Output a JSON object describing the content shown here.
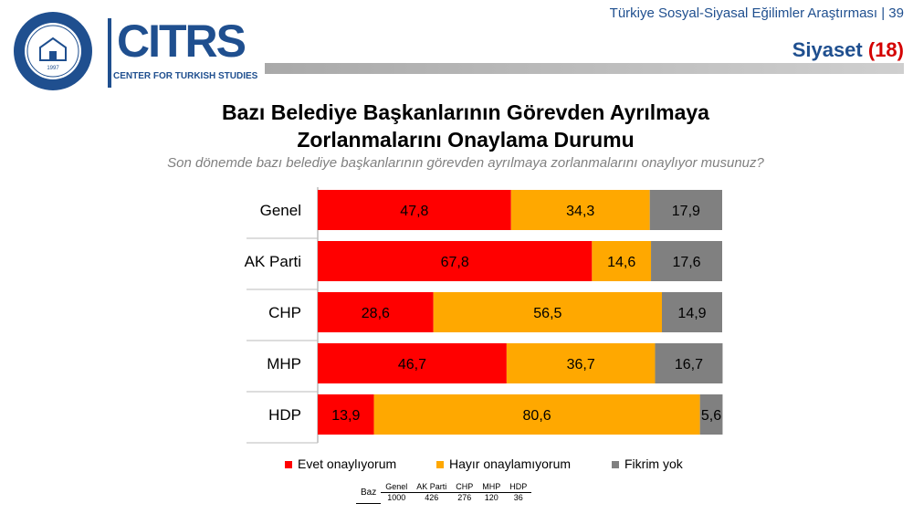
{
  "header": {
    "report_title": "Türkiye Sosyal-Siyasal Eğilimler Araştırması | 39",
    "section_name": "Siyaset",
    "section_number": "(18)",
    "citrs_text": "CITRS",
    "citrs_subtitle": "CENTER FOR TURKISH STUDIES",
    "seal_text": "KADİR HAS ÜNİVERSİTESİ",
    "seal_year": "1997"
  },
  "colors": {
    "evet": "#ff0000",
    "hayir": "#ffa800",
    "fikrim_yok": "#808080",
    "brand_blue": "#1f4f8f",
    "section_number_red": "#d40000"
  },
  "chart_data": {
    "type": "bar",
    "orientation": "horizontal",
    "stacked": true,
    "title_line1": "Bazı Belediye Başkanlarının Görevden Ayrılmaya",
    "title_line2": "Zorlanmalarını Onaylama Durumu",
    "subtitle": "Son dönemde bazı belediye başkanlarının görevden ayrılmaya zorlanmalarını onaylıyor musunuz?",
    "categories": [
      "Genel",
      "AK Parti",
      "CHP",
      "MHP",
      "HDP"
    ],
    "series": [
      {
        "name": "Evet onaylıyorum",
        "color": "#ff0000",
        "values": [
          47.8,
          67.8,
          28.6,
          46.7,
          13.9
        ]
      },
      {
        "name": "Hayır onaylamıyorum",
        "color": "#ffa800",
        "values": [
          34.3,
          14.6,
          56.5,
          36.7,
          80.6
        ]
      },
      {
        "name": "Fikrim yok",
        "color": "#808080",
        "values": [
          17.9,
          17.6,
          14.9,
          16.7,
          5.6
        ]
      }
    ],
    "value_labels": [
      [
        "47,8",
        "34,3",
        "17,9"
      ],
      [
        "67,8",
        "14,6",
        "17,6"
      ],
      [
        "28,6",
        "56,5",
        "14,9"
      ],
      [
        "46,7",
        "36,7",
        "16,7"
      ],
      [
        "13,9",
        "80,6",
        "5,6"
      ]
    ],
    "xlim": [
      0,
      100
    ],
    "legend_position": "bottom",
    "grid": false
  },
  "base_table": {
    "label": "Baz",
    "headers": [
      "Genel",
      "AK Parti",
      "CHP",
      "MHP",
      "HDP"
    ],
    "values": [
      "1000",
      "426",
      "276",
      "120",
      "36"
    ]
  }
}
